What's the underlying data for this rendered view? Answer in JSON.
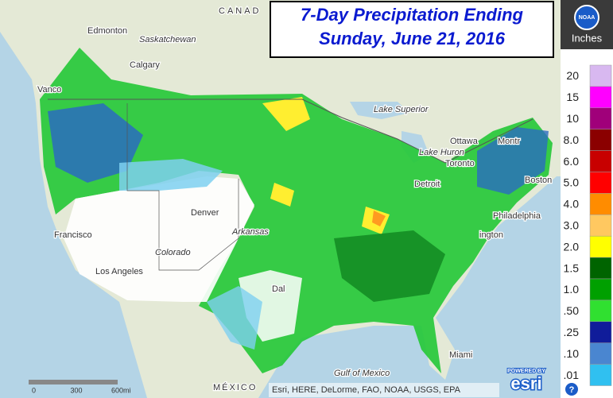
{
  "title": {
    "line1": "7-Day Precipitation Ending",
    "line2": "Sunday, June 21, 2016"
  },
  "legend": {
    "header": "Inches",
    "items": [
      {
        "label": "20",
        "color": "#d8b8f0"
      },
      {
        "label": "15",
        "color": "#ff00ff"
      },
      {
        "label": "10",
        "color": "#a0007a"
      },
      {
        "label": "8.0",
        "color": "#8b0000"
      },
      {
        "label": "6.0",
        "color": "#c80000"
      },
      {
        "label": "5.0",
        "color": "#ff0000"
      },
      {
        "label": "4.0",
        "color": "#ff8c00"
      },
      {
        "label": "3.0",
        "color": "#ffc860"
      },
      {
        "label": "2.0",
        "color": "#ffff00"
      },
      {
        "label": "1.5",
        "color": "#006400"
      },
      {
        "label": "1.0",
        "color": "#00a000"
      },
      {
        "label": ".50",
        "color": "#30e030"
      },
      {
        "label": ".25",
        "color": "#101c9a"
      },
      {
        "label": ".10",
        "color": "#4a86d0"
      },
      {
        "label": ".01",
        "color": "#30c0f0"
      }
    ]
  },
  "map_labels": [
    "CANAD",
    "Edmonton",
    "Saskatchewan",
    "Calgary",
    "Vanco",
    "Francisco",
    "Los Angeles",
    "Denver",
    "Colorado",
    "Arkansas",
    "Lake Superior",
    "Lake Huron",
    "Ottawa",
    "Montr",
    "Toronto",
    "Detroit",
    "Boston",
    "Philadelphia",
    "ington",
    "Dal",
    "Miami",
    "Gulf of Mexico",
    "MÉXICO"
  ],
  "scale": [
    "0",
    "300",
    "600mi"
  ],
  "attribution": "Esri, HERE, DeLorme, FAO, NOAA, USGS, EPA",
  "logos": {
    "noaa": "NOAA",
    "esri_caption": "POWERED BY",
    "esri": "esri"
  },
  "help": "?"
}
